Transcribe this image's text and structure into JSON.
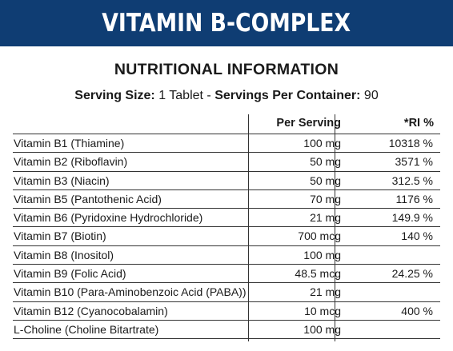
{
  "banner": {
    "title": "VITAMIN B-COMPLEX",
    "bg_color": "#0f3d73"
  },
  "heading": "NUTRITIONAL INFORMATION",
  "serving": {
    "size_label": "Serving Size:",
    "size_value": " 1 Tablet - ",
    "per_container_label": "Servings Per Container:",
    "per_container_value": " 90"
  },
  "table": {
    "headers": {
      "per_serving": "Per Serving",
      "ri": "*RI %"
    },
    "rows": [
      {
        "name": "Vitamin B1 (Thiamine)",
        "amount": "100 mg",
        "ri": "10318 %"
      },
      {
        "name": "Vitamin B2 (Riboflavin)",
        "amount": "50 mg",
        "ri": "3571 %"
      },
      {
        "name": "Vitamin B3 (Niacin)",
        "amount": "50 mg",
        "ri": "312.5 %"
      },
      {
        "name": "Vitamin B5 (Pantothenic Acid)",
        "amount": "70 mg",
        "ri": "1176 %"
      },
      {
        "name": "Vitamin B6 (Pyridoxine Hydrochloride)",
        "amount": "21 mg",
        "ri": "149.9 %"
      },
      {
        "name": "Vitamin B7 (Biotin)",
        "amount": "700 mcg",
        "ri": "140 %"
      },
      {
        "name": "Vitamin B8 (Inositol)",
        "amount": "100 mg",
        "ri": ""
      },
      {
        "name": "Vitamin B9 (Folic Acid)",
        "amount": "48.5 mcg",
        "ri": "24.25 %"
      },
      {
        "name": "Vitamin B10 (Para-Aminobenzoic Acid (PABA))",
        "amount": "21 mg",
        "ri": ""
      },
      {
        "name": "Vitamin B12 (Cyanocobalamin)",
        "amount": "10 mcg",
        "ri": "400 %"
      },
      {
        "name": "L-Choline (Choline Bitartrate)",
        "amount": "100 mg",
        "ri": ""
      }
    ]
  }
}
